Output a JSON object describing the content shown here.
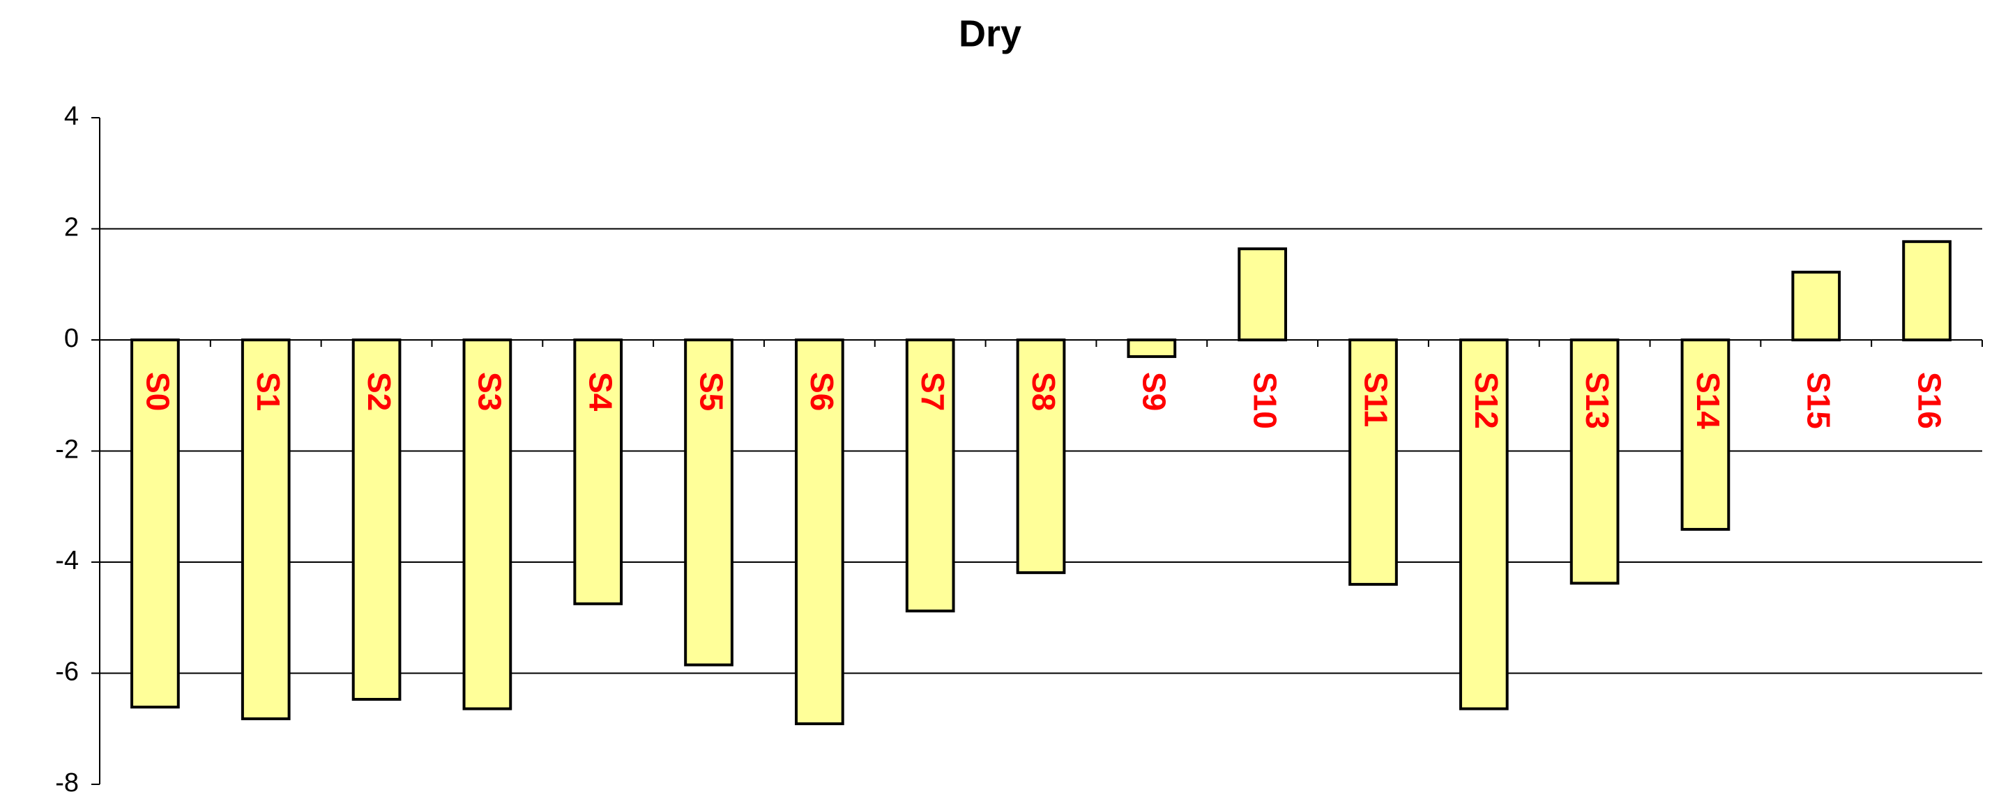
{
  "chart_data": {
    "type": "bar",
    "title": "Dry",
    "categories": [
      "S0",
      "S1",
      "S2",
      "S3",
      "S4",
      "S5",
      "S6",
      "S7",
      "S8",
      "S9",
      "S10",
      "S11",
      "S12",
      "S13",
      "S14",
      "S15",
      "S16"
    ],
    "values": [
      -6.61,
      -6.82,
      -6.47,
      -6.64,
      -4.75,
      -5.85,
      -6.91,
      -4.88,
      -4.19,
      -0.3,
      1.64,
      -4.4,
      -6.64,
      -4.38,
      -3.41,
      1.22,
      1.77
    ],
    "color": "#ffff99",
    "label_color": "#ff0000",
    "ylim": [
      -8,
      4
    ],
    "yticks": [
      -8,
      -6,
      -4,
      -2,
      0,
      2,
      4
    ],
    "grid": true
  }
}
